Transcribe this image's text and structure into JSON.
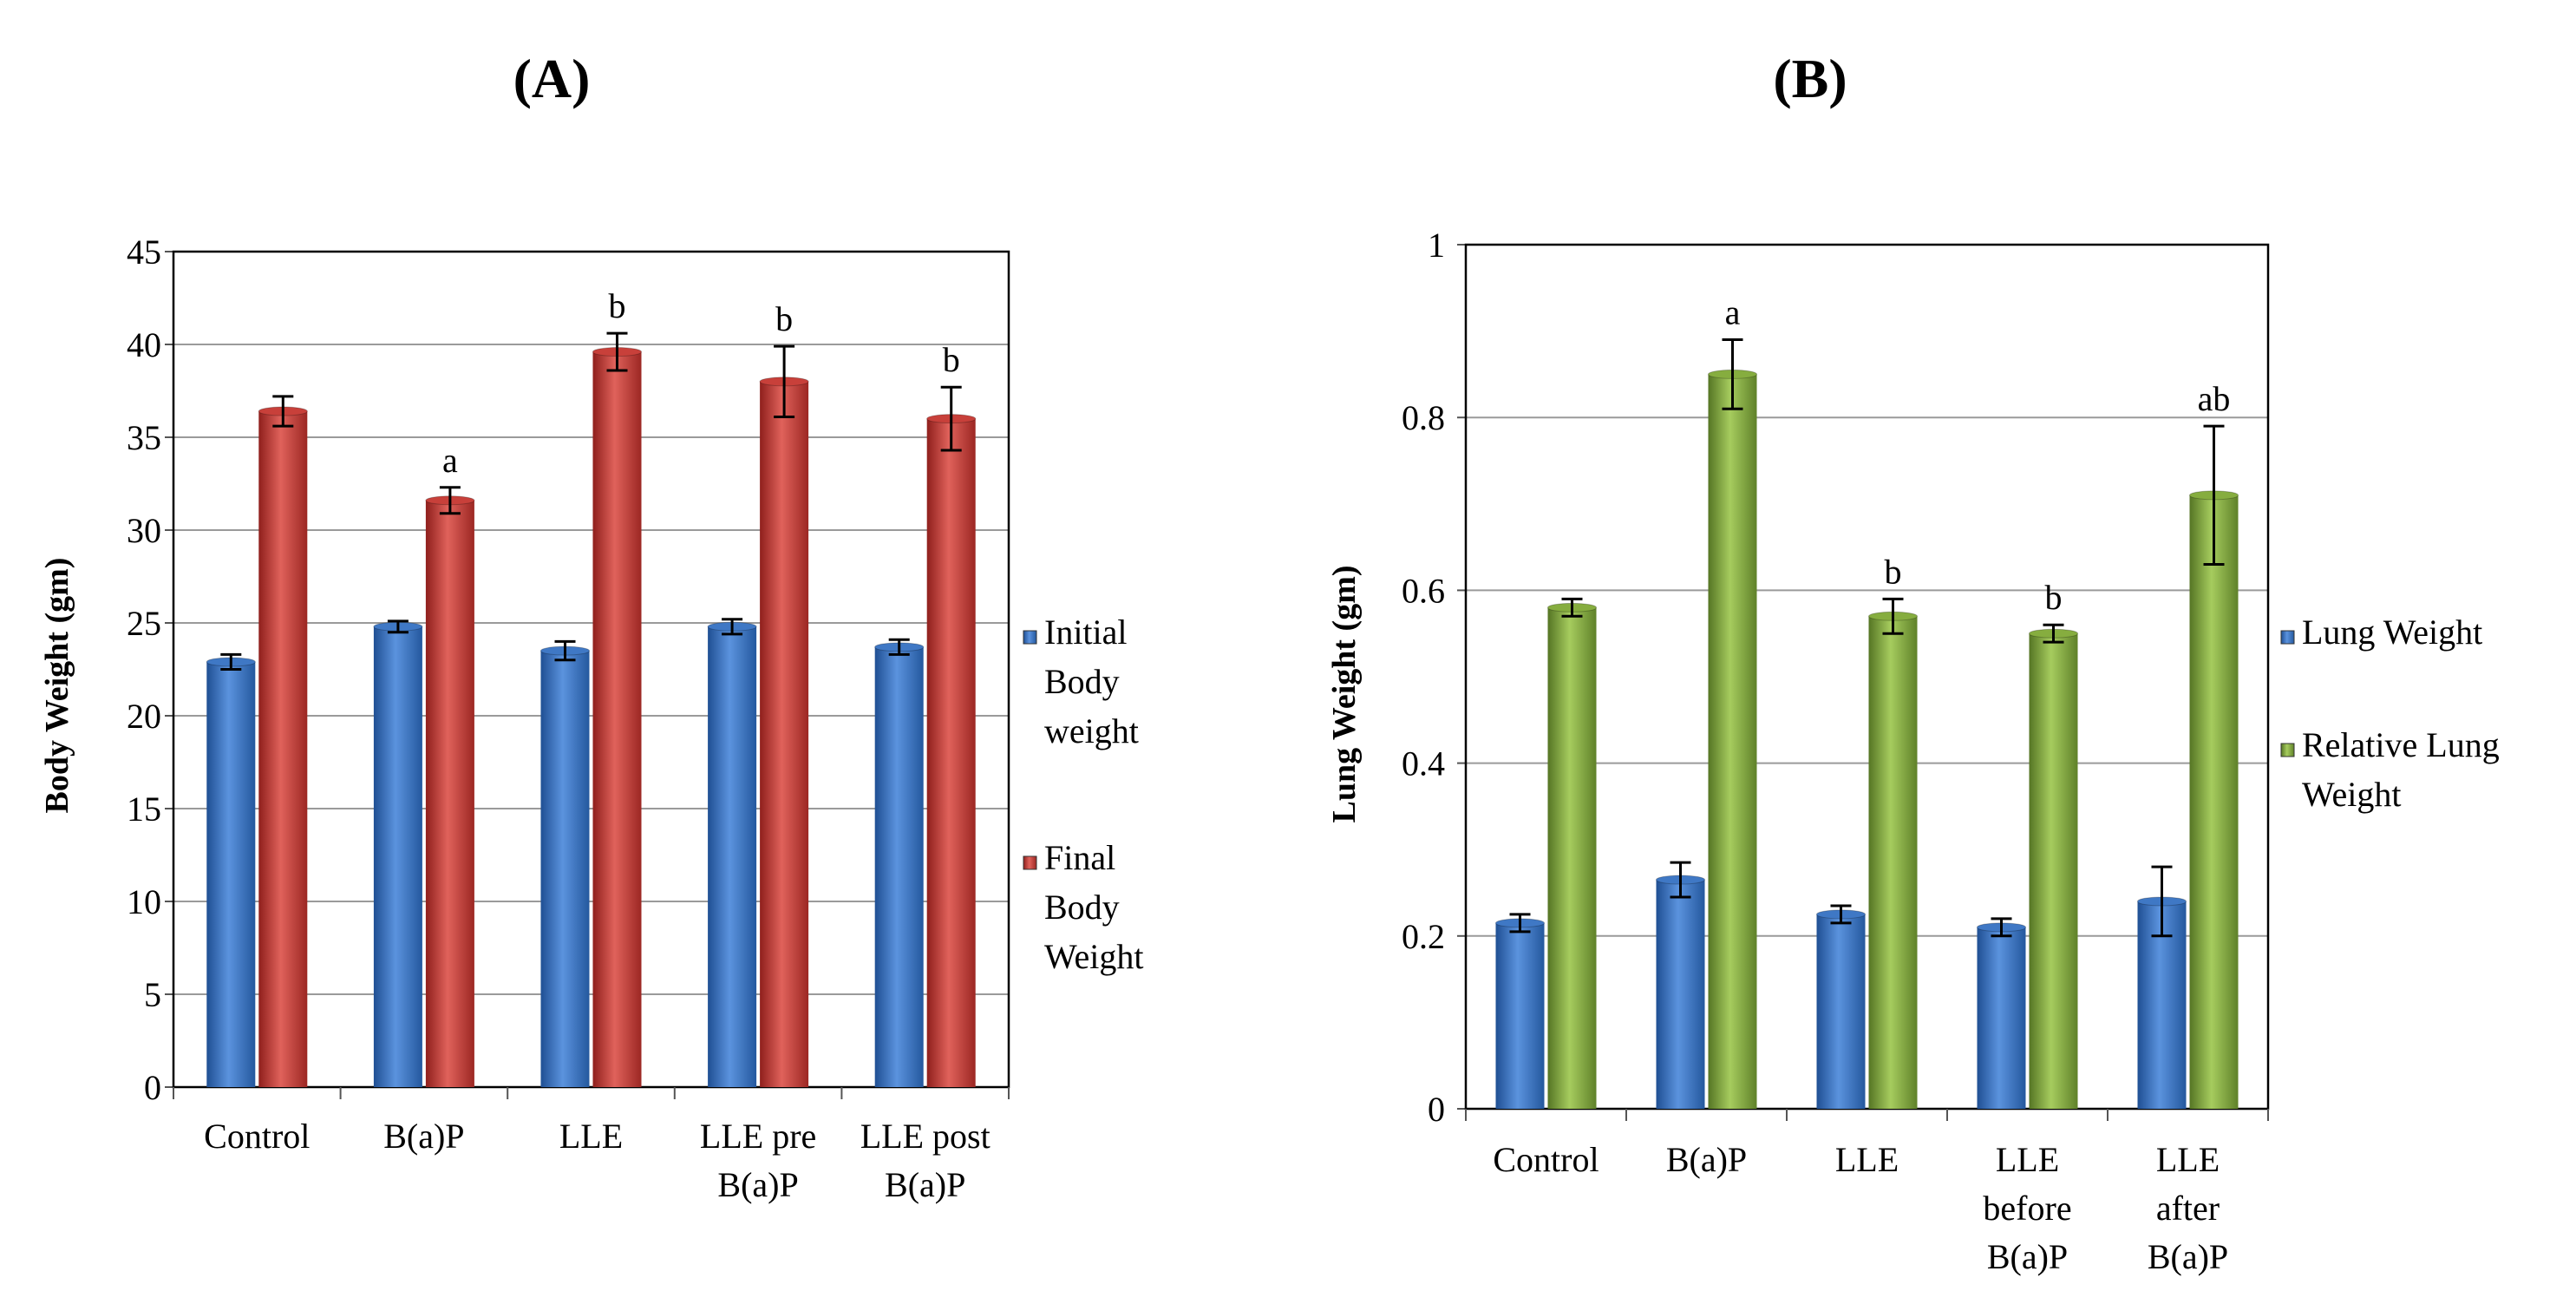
{
  "chart_data": [
    {
      "type": "bar",
      "panel_label": "(A)",
      "title": "",
      "xlabel": "",
      "ylabel": "Body Weight (gm)",
      "ylim": [
        0,
        45
      ],
      "yticks": [
        0,
        5,
        10,
        15,
        20,
        25,
        30,
        35,
        40,
        45
      ],
      "grid": true,
      "legend_position": "right",
      "categories": [
        [
          "Control"
        ],
        [
          "B(a)P"
        ],
        [
          "LLE"
        ],
        [
          "LLE pre",
          "B(a)P"
        ],
        [
          "LLE post",
          "B(a)P"
        ]
      ],
      "series": [
        {
          "name": "Initial Body weight",
          "legend_lines": [
            "Initial",
            "Body",
            "weight"
          ],
          "color": "#3f78c5",
          "values": [
            22.9,
            24.8,
            23.5,
            24.8,
            23.7
          ],
          "errors": [
            0.4,
            0.3,
            0.5,
            0.4,
            0.4
          ],
          "annotations": [
            "",
            "",
            "",
            "",
            ""
          ]
        },
        {
          "name": "Final Body Weight",
          "legend_lines": [
            "Final",
            "Body",
            "Weight"
          ],
          "color": "#c8403a",
          "values": [
            36.4,
            31.6,
            39.6,
            38.0,
            36.0
          ],
          "errors": [
            0.8,
            0.7,
            1.0,
            1.9,
            1.7
          ],
          "annotations": [
            "",
            "a",
            "b",
            "b",
            "b"
          ]
        }
      ]
    },
    {
      "type": "bar",
      "panel_label": "(B)",
      "title": "",
      "xlabel": "",
      "ylabel": "Lung  Weight (gm)",
      "ylim": [
        0,
        1
      ],
      "yticks": [
        0,
        0.2,
        0.4,
        0.6,
        0.8,
        1
      ],
      "ytick_labels": [
        "0",
        "0.2",
        "0.4",
        "0.6",
        "0.8",
        "1"
      ],
      "grid": true,
      "legend_position": "right",
      "categories": [
        [
          "Control"
        ],
        [
          "B(a)P"
        ],
        [
          "LLE"
        ],
        [
          "LLE",
          "before",
          "B(a)P"
        ],
        [
          "LLE",
          "after",
          "B(a)P"
        ]
      ],
      "series": [
        {
          "name": "Lung Weight",
          "legend_lines": [
            "Lung Weight"
          ],
          "color": "#3f78c5",
          "values": [
            0.215,
            0.265,
            0.225,
            0.21,
            0.24
          ],
          "errors": [
            0.01,
            0.02,
            0.01,
            0.01,
            0.04
          ],
          "annotations": [
            "",
            "",
            "",
            "",
            ""
          ]
        },
        {
          "name": "Relative Lung Weight",
          "legend_lines": [
            "Relative Lung",
            "Weight"
          ],
          "color": "#86ad3f",
          "values": [
            0.58,
            0.85,
            0.57,
            0.55,
            0.71
          ],
          "errors": [
            0.01,
            0.04,
            0.02,
            0.01,
            0.08
          ],
          "annotations": [
            "",
            "a",
            "b",
            "b",
            "ab"
          ]
        }
      ]
    }
  ]
}
